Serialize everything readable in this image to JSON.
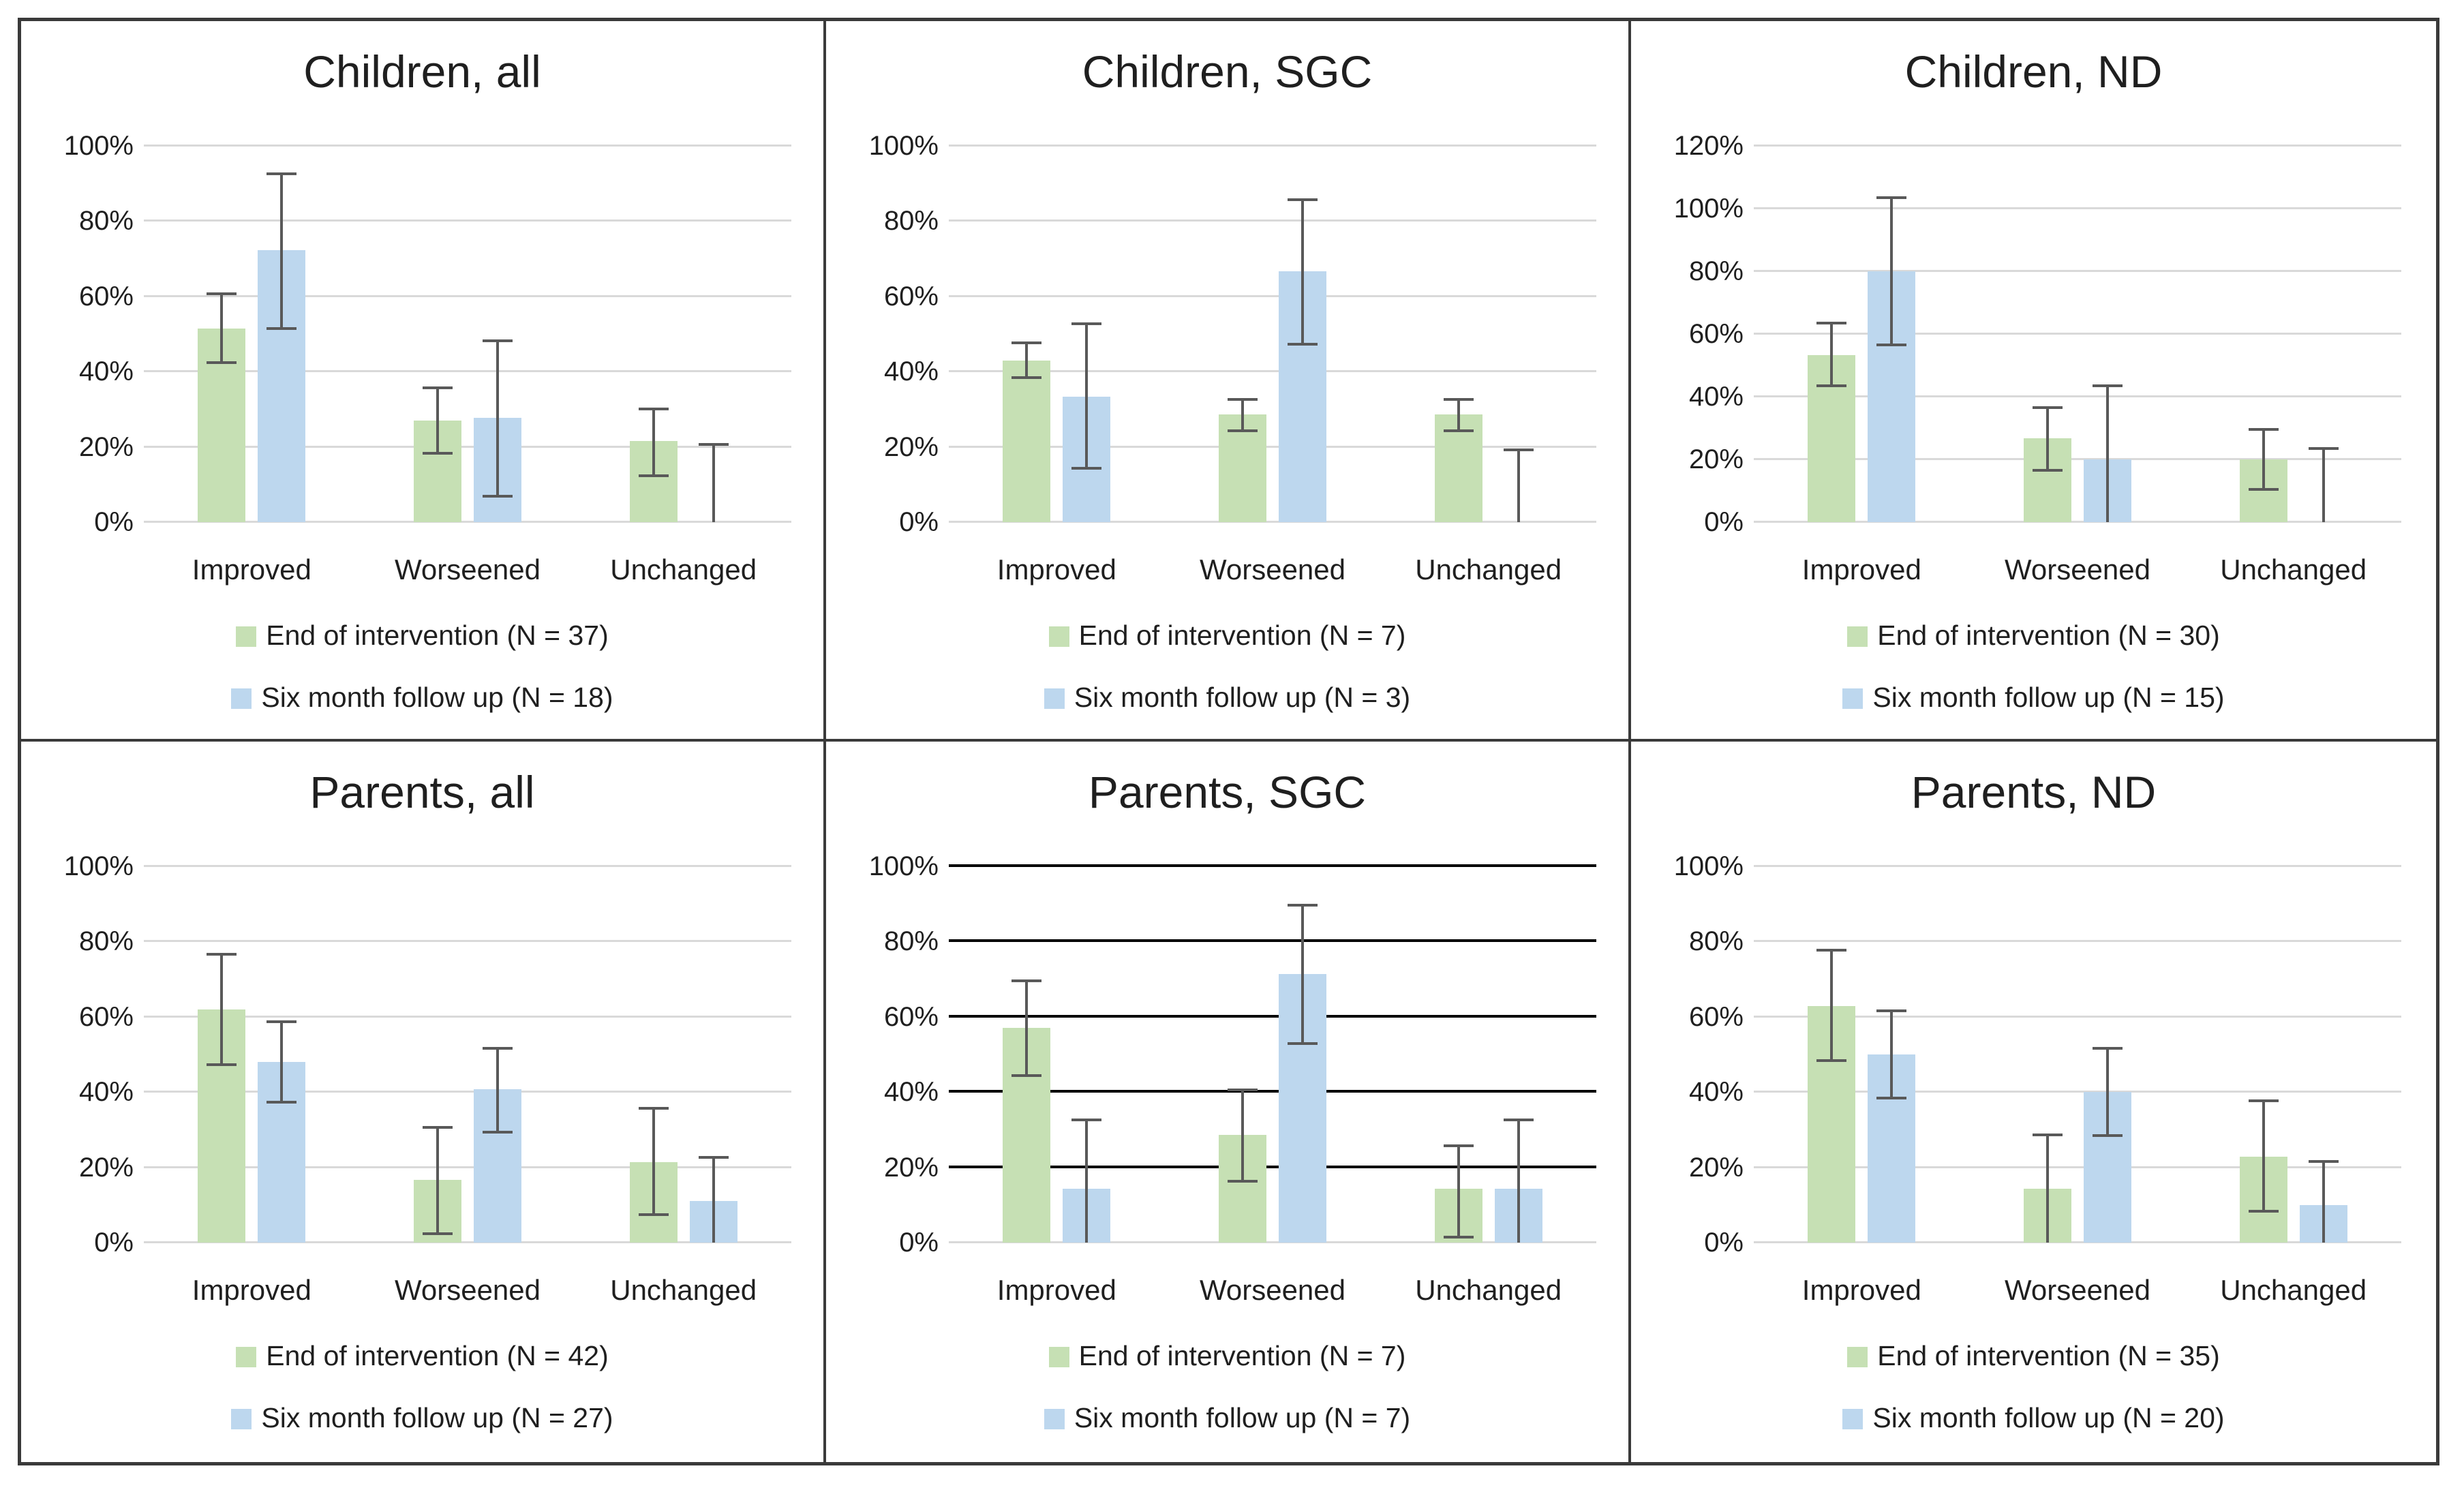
{
  "colors": {
    "bar_green": "#c6e0b4",
    "bar_blue": "#bdd7ee",
    "gridline_gray": "#d9d9d9",
    "gridline_black": "#000000",
    "error_bar": "#595959",
    "frame_border": "#3a3a3a",
    "text": "#1f1f1f"
  },
  "chart_data": [
    {
      "type": "bar",
      "title": "Children, all",
      "categories": [
        "Improved",
        "Worseened",
        "Unchanged"
      ],
      "ylim": [
        0,
        100
      ],
      "ytick_step": 20,
      "ytick_labels": [
        "0%",
        "20%",
        "40%",
        "60%",
        "80%",
        "100%"
      ],
      "grid": true,
      "grid_color": "#d9d9d9",
      "legend_position": "bottom",
      "series": [
        {
          "name": "End of intervention (N = 37)",
          "color": "#c6e0b4",
          "values": [
            51.4,
            27.0,
            21.6
          ],
          "error_low": [
            42,
            18,
            12
          ],
          "error_high": [
            61,
            36,
            30.5
          ]
        },
        {
          "name": "Six month follow up (N = 18)",
          "color": "#bdd7ee",
          "values": [
            72.2,
            27.8,
            0
          ],
          "error_low": [
            51,
            6.5,
            0
          ],
          "error_high": [
            93,
            48.5,
            21
          ]
        }
      ]
    },
    {
      "type": "bar",
      "title": "Children, SGC",
      "categories": [
        "Improved",
        "Worseened",
        "Unchanged"
      ],
      "ylim": [
        0,
        100
      ],
      "ytick_step": 20,
      "ytick_labels": [
        "0%",
        "20%",
        "40%",
        "60%",
        "80%",
        "100%"
      ],
      "grid": true,
      "grid_color": "#d9d9d9",
      "legend_position": "bottom",
      "series": [
        {
          "name": "End of intervention (N = 7)",
          "color": "#c6e0b4",
          "values": [
            42.9,
            28.6,
            28.6
          ],
          "error_low": [
            38,
            24,
            24
          ],
          "error_high": [
            48,
            33,
            33
          ]
        },
        {
          "name": "Six month follow up (N = 3)",
          "color": "#bdd7ee",
          "values": [
            33.3,
            66.7,
            0
          ],
          "error_low": [
            14,
            47,
            0
          ],
          "error_high": [
            53,
            86,
            19.5
          ]
        }
      ]
    },
    {
      "type": "bar",
      "title": "Children, ND",
      "categories": [
        "Improved",
        "Worseened",
        "Unchanged"
      ],
      "ylim": [
        0,
        120
      ],
      "ytick_step": 20,
      "ytick_labels": [
        "0%",
        "20%",
        "40%",
        "60%",
        "80%",
        "100%",
        "120%"
      ],
      "grid": true,
      "grid_color": "#d9d9d9",
      "legend_position": "bottom",
      "series": [
        {
          "name": "End of intervention (N = 30)",
          "color": "#c6e0b4",
          "values": [
            53.3,
            26.7,
            20.0
          ],
          "error_low": [
            43,
            16,
            10
          ],
          "error_high": [
            64,
            37,
            30
          ]
        },
        {
          "name": "Six month follow up (N = 15)",
          "color": "#bdd7ee",
          "values": [
            80.0,
            20.0,
            0
          ],
          "error_low": [
            56,
            0,
            0
          ],
          "error_high": [
            104,
            44,
            24
          ]
        }
      ]
    },
    {
      "type": "bar",
      "title": "Parents, all",
      "categories": [
        "Improved",
        "Worseened",
        "Unchanged"
      ],
      "ylim": [
        0,
        100
      ],
      "ytick_step": 20,
      "ytick_labels": [
        "0%",
        "20%",
        "40%",
        "60%",
        "80%",
        "100%"
      ],
      "grid": true,
      "grid_color": "#d9d9d9",
      "legend_position": "bottom",
      "series": [
        {
          "name": "End of intervention (N = 42)",
          "color": "#c6e0b4",
          "values": [
            61.9,
            16.7,
            21.4
          ],
          "error_low": [
            47,
            2,
            7
          ],
          "error_high": [
            77,
            31,
            36
          ]
        },
        {
          "name": "Six month follow up (N = 27)",
          "color": "#bdd7ee",
          "values": [
            48.1,
            40.7,
            11.1
          ],
          "error_low": [
            37,
            29,
            0
          ],
          "error_high": [
            59,
            52,
            23
          ]
        }
      ]
    },
    {
      "type": "bar",
      "title": "Parents, SGC",
      "categories": [
        "Improved",
        "Worseened",
        "Unchanged"
      ],
      "ylim": [
        0,
        100
      ],
      "ytick_step": 20,
      "ytick_labels": [
        "0%",
        "20%",
        "40%",
        "60%",
        "80%",
        "100%"
      ],
      "grid": true,
      "grid_color": "#000000",
      "legend_position": "bottom",
      "series": [
        {
          "name": "End of intervention (N = 7)",
          "color": "#c6e0b4",
          "values": [
            57.1,
            28.6,
            14.3
          ],
          "error_low": [
            44,
            16,
            1
          ],
          "error_high": [
            70,
            41,
            26
          ]
        },
        {
          "name": "Six month follow up (N = 7)",
          "color": "#bdd7ee",
          "values": [
            14.3,
            71.4,
            14.3
          ],
          "error_low": [
            0,
            52.5,
            0
          ],
          "error_high": [
            33,
            90,
            33
          ]
        }
      ]
    },
    {
      "type": "bar",
      "title": "Parents, ND",
      "categories": [
        "Improved",
        "Worseened",
        "Unchanged"
      ],
      "ylim": [
        0,
        100
      ],
      "ytick_step": 20,
      "ytick_labels": [
        "0%",
        "20%",
        "40%",
        "60%",
        "80%",
        "100%"
      ],
      "grid": true,
      "grid_color": "#d9d9d9",
      "legend_position": "bottom",
      "series": [
        {
          "name": "End of intervention (N = 35)",
          "color": "#c6e0b4",
          "values": [
            62.9,
            14.3,
            22.9
          ],
          "error_low": [
            48,
            0,
            8
          ],
          "error_high": [
            78,
            29,
            38
          ]
        },
        {
          "name": "Six month follow up (N = 20)",
          "color": "#bdd7ee",
          "values": [
            50.0,
            40.0,
            10.0
          ],
          "error_low": [
            38,
            28,
            0
          ],
          "error_high": [
            62,
            52,
            22
          ]
        }
      ]
    }
  ]
}
